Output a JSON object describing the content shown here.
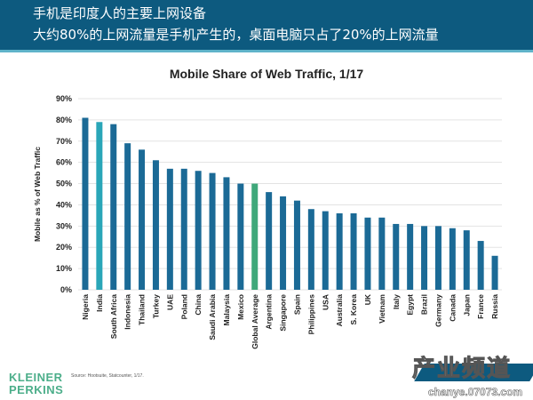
{
  "header": {
    "line1": "手机是印度人的主要上网设备",
    "line2": "大约80%的上网流量是手机产生的，桌面电脑只占了20%的上网流量"
  },
  "footer": {
    "logo": "KLEINER PERKINS",
    "source": "Source: Hootsuite, Statcounter, 1/17.",
    "watermark_line1": "产业频道",
    "watermark_line2": "chanye.07073.com"
  },
  "colors": {
    "bar": "#1b6a96",
    "india": "#2aa6b8",
    "global_average": "#3fa87a",
    "header": "#0d5a7f"
  },
  "chart_data": {
    "type": "bar",
    "title": "Mobile Share of Web Traffic, 1/17",
    "xlabel": "",
    "ylabel": "Mobile as % of Web Traffic",
    "ylim": [
      0,
      90
    ],
    "yticks": [
      "0%",
      "10%",
      "20%",
      "30%",
      "40%",
      "50%",
      "60%",
      "70%",
      "80%",
      "90%"
    ],
    "grid": true,
    "categories": [
      "Nigeria",
      "India",
      "South Africa",
      "Indonesia",
      "Thailand",
      "Turkey",
      "UAE",
      "Poland",
      "China",
      "Saudi Arabia",
      "Malaysia",
      "Mexico",
      "Global Average",
      "Argentina",
      "Singapore",
      "Spain",
      "Philippines",
      "USA",
      "Australia",
      "S. Korea",
      "UK",
      "Vietnam",
      "Italy",
      "Egypt",
      "Brazil",
      "Germany",
      "Canada",
      "Japan",
      "France",
      "Russia"
    ],
    "values": [
      81,
      79,
      78,
      69,
      66,
      61,
      57,
      57,
      56,
      55,
      53,
      50,
      50,
      46,
      44,
      42,
      38,
      37,
      36,
      36,
      34,
      34,
      31,
      31,
      30,
      30,
      29,
      28,
      23,
      16
    ],
    "highlight": {
      "India": "india",
      "Global Average": "global_average"
    }
  }
}
